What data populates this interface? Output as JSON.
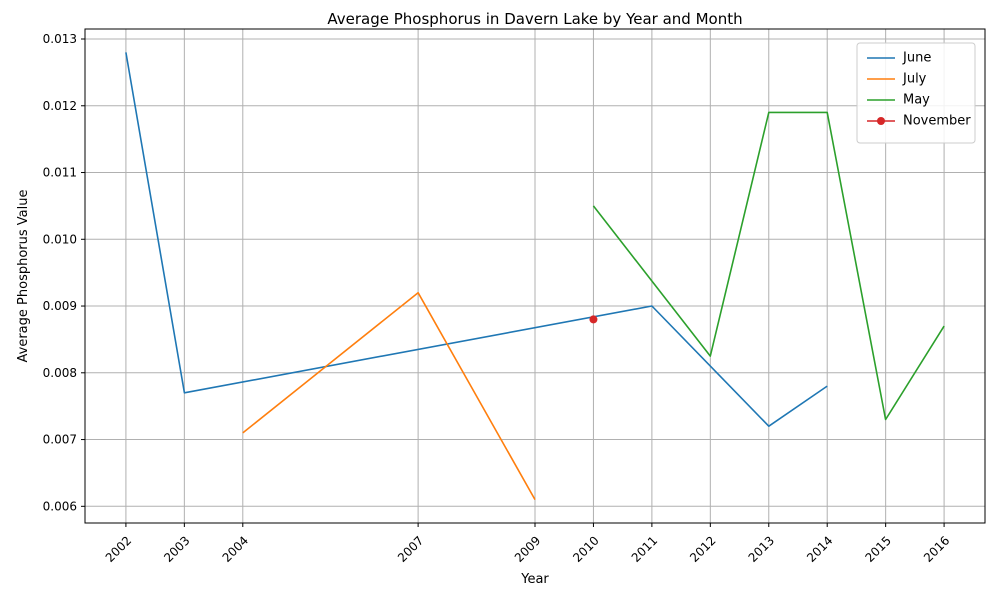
{
  "chart_data": {
    "type": "line",
    "title": "Average Phosphorus in Davern Lake by Year and Month",
    "xlabel": "Year",
    "ylabel": "Average Phosphorus Value",
    "xlim": [
      2001.3,
      2016.7
    ],
    "ylim": [
      0.00575,
      0.01315
    ],
    "x_ticks": [
      "2002",
      "2003",
      "2004",
      "2007",
      "2009",
      "2010",
      "2011",
      "2012",
      "2013",
      "2014",
      "2015",
      "2016"
    ],
    "y_ticks": [
      "0.006",
      "0.007",
      "0.008",
      "0.009",
      "0.010",
      "0.011",
      "0.012",
      "0.013"
    ],
    "grid": true,
    "legend_position": "top-right",
    "series": [
      {
        "name": "June",
        "color": "#1f77b4",
        "marker": "none",
        "x": [
          2002,
          2003,
          2011,
          2013,
          2014
        ],
        "y": [
          0.0128,
          0.0077,
          0.009,
          0.0072,
          0.0078
        ]
      },
      {
        "name": "July",
        "color": "#ff7f0e",
        "marker": "none",
        "x": [
          2004,
          2007,
          2009
        ],
        "y": [
          0.0071,
          0.0092,
          0.0061
        ]
      },
      {
        "name": "May",
        "color": "#2ca02c",
        "marker": "none",
        "x": [
          2010,
          2012,
          2013,
          2014,
          2015,
          2016
        ],
        "y": [
          0.0105,
          0.00825,
          0.0119,
          0.0119,
          0.0073,
          0.0087
        ]
      },
      {
        "name": "November",
        "color": "#d62728",
        "marker": "circle",
        "x": [
          2010
        ],
        "y": [
          0.0088
        ]
      }
    ]
  }
}
